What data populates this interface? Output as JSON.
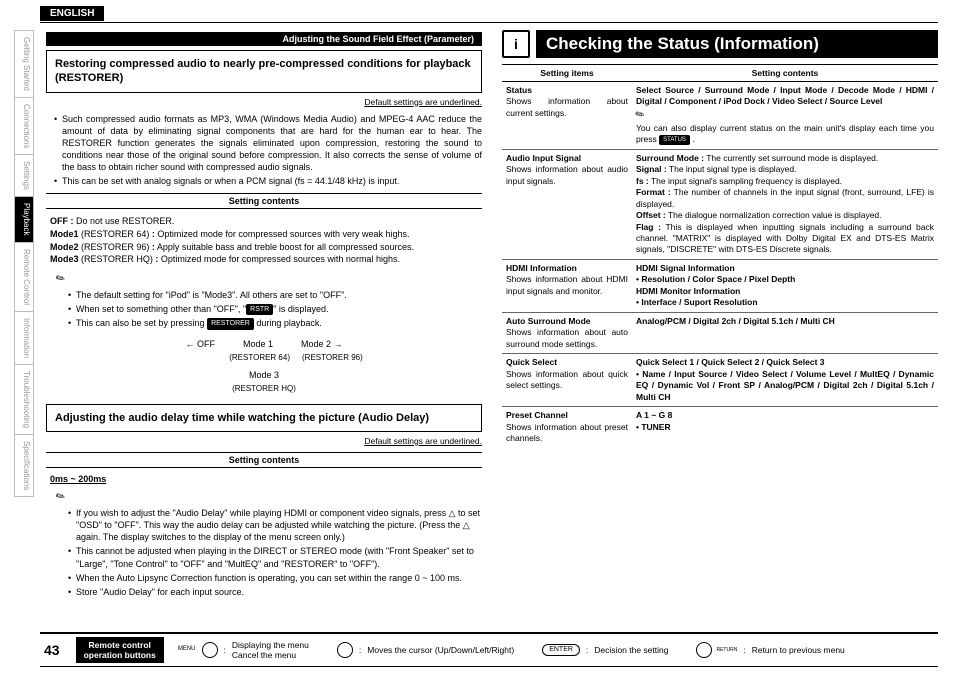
{
  "lang": "ENGLISH",
  "page_number": "43",
  "tabs": [
    "Getting Started",
    "Connections",
    "Settings",
    "Playback",
    "Remote Control",
    "Information",
    "Troubleshooting",
    "Specifications"
  ],
  "active_tab": 3,
  "left": {
    "section_header": "Adjusting the Sound Field Effect (Parameter)",
    "box1_title": "Restoring compressed audio to nearly pre-compressed conditions for playback (RESTORER)",
    "underline1": "Default settings are underlined.",
    "para1": "Such compressed audio formats as MP3, WMA (Windows Media Audio) and MPEG-4 AAC reduce the amount of data by eliminating signal components that are hard for the human ear to hear. The RESTORER function generates the signals eliminated upon compression, restoring the sound to conditions near those of the original sound before compression. It also corrects the sense of volume of the bass to obtain richer sound with compressed audio signals.",
    "para2": "This can be set with analog signals or when a PCM signal (fs = 44.1/48 kHz) is input.",
    "sc_label": "Setting contents",
    "mode_off": "OFF : Do not use RESTORER.",
    "mode1": "Mode1 (RESTORER 64) : Optimized mode for compressed sources with very weak highs.",
    "mode2": "Mode2 (RESTORER 96) : Apply suitable bass and treble boost for all compressed sources.",
    "mode3": "Mode3 (RESTORER HQ) : Optimized mode for compressed sources with normal highs.",
    "note1": "The default setting for \"iPod\" is \"Mode3\". All others are set to \"OFF\".",
    "note2a": "When set to something other than \"OFF\", \"",
    "note2b": "\" is displayed.",
    "note3a": "This can also be set by pressing ",
    "note3b": " during playback.",
    "rstr": "RSTR",
    "restorer": "RESTORER",
    "diagram": {
      "r1": [
        "OFF",
        "Mode 1",
        "Mode 2"
      ],
      "r2": [
        "(RESTORER 64)",
        "(RESTORER 96)"
      ],
      "r3": "Mode 3",
      "r4": "(RESTORER HQ)"
    },
    "box2_title": "Adjusting the audio delay time while watching the picture (Audio Delay)",
    "underline2": "Default settings are underlined.",
    "delay_range": "0ms ~ 200ms",
    "dnote1": "If you wish to adjust the \"Audio Delay\" while playing HDMI or component video signals, press △ to set \"OSD\" to \"OFF\". This way the audio delay can be adjusted while watching the picture. (Press the △ again. The display switches to the display of the menu screen only.)",
    "dnote2": "This cannot be adjusted when playing in the DIRECT or STEREO mode (with \"Front Speaker\" set to \"Large\", \"Tone Control\" to \"OFF\" and \"MultEQ\" and \"RESTORER\" to \"OFF\").",
    "dnote3": "When the Auto Lipsync Correction function is operating, you can set within the range 0 ~ 100 ms.",
    "dnote4": "Store \"Audio Delay\" for each input source."
  },
  "right": {
    "title": "Checking the Status (Information)",
    "th1": "Setting items",
    "th2": "Setting contents",
    "rows": [
      {
        "item": "Status",
        "desc": "Shows information about current settings.",
        "content": "<b>Select Source / Surround Mode / Input Mode / Decode Mode / HDMI / Digital / Component / iPod Dock / Video Select / Source Level</b><br><span class='pen'>✎</span><br>You can also display current status on the main unit's display each time you press <span class='btn-badge' style='font-size:6px'>STATUS</span> ."
      },
      {
        "item": "Audio Input Signal",
        "desc": "Shows information about audio input signals.",
        "content": "<b>Surround Mode :</b> The currently set surround mode is displayed.<br><b>Signal :</b> The input signal type is displayed.<br><b>fs :</b> The input signal's sampling frequency is displayed.<br><b>Format :</b> The number of channels in the input signal (front, surround, LFE) is displayed.<br><b>Offset :</b> The dialogue normalization correction value is displayed.<br><b>Flag :</b> This is displayed when inputting signals including a surround back channel. \"MATRIX\" is displayed with Dolby Digital EX and DTS-ES Matrix signals, \"DISCRETE\" with DTS-ES Discrete signals."
      },
      {
        "item": "HDMI Information",
        "desc": "Shows information about HDMI input signals and monitor.",
        "content": "<b>HDMI Signal Information</b><br><b>• Resolution / Color Space / Pixel Depth</b><br><b>HDMI Monitor Information</b><br><b>• Interface / Suport Resolution</b>"
      },
      {
        "item": "Auto Surround Mode",
        "desc": "Shows information about auto surround mode settings.",
        "content": "<b>Analog/PCM / Digital 2ch / Digital 5.1ch / Multi CH</b>"
      },
      {
        "item": "Quick Select",
        "desc": "Shows information about quick select settings.",
        "content": "<b>Quick Select 1 / Quick Select 2 / Quick Select 3<br>• Name / Input Source / Video Select / Volume Level / MultEQ / Dynamic EQ / Dynamic Vol / Front SP / Analog/PCM / Digital 2ch / Digital 5.1ch / Multi CH</b>"
      },
      {
        "item": "Preset Channel",
        "desc": "Shows information about preset channels.",
        "content": "<b>A 1 ~ G 8<br>• TUNER</b>"
      }
    ]
  },
  "footer": {
    "btn": "Remote control\noperation buttons",
    "s1a": "Displaying the menu",
    "s1b": "Cancel the menu",
    "s2": "Moves the cursor (Up/Down/Left/Right)",
    "s3": "Decision the setting",
    "s4": "Return to previous menu",
    "menu_lbl": "MENU",
    "enter": "ENTER",
    "return": "RETURN"
  }
}
